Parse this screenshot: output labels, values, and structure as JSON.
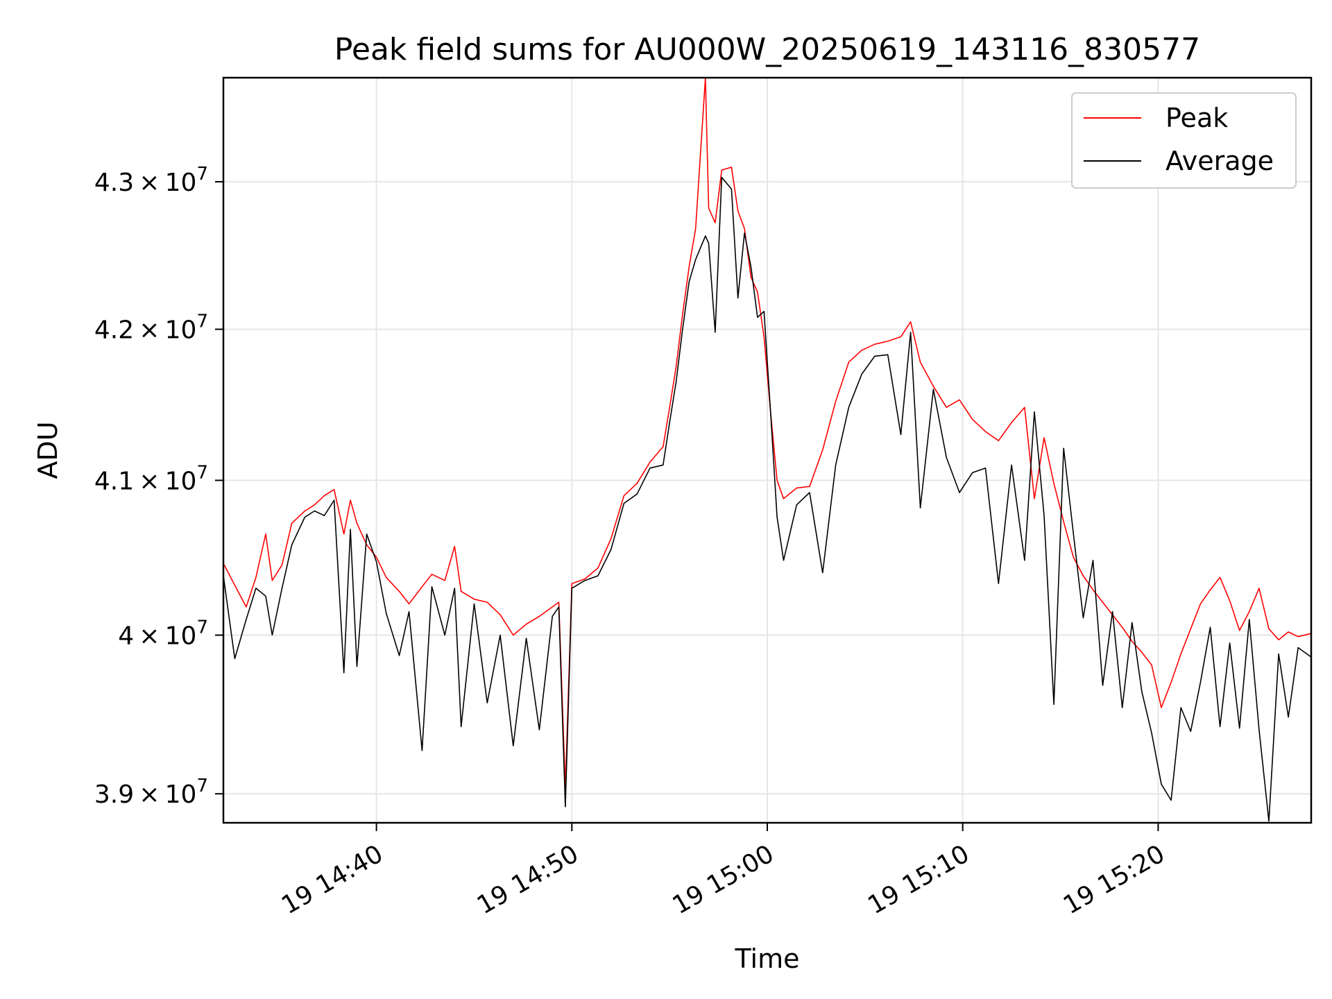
{
  "chart_data": {
    "type": "line",
    "title": "Peak field sums for AU000W_20250619_143116_830577",
    "xlabel": "Time",
    "ylabel": "ADU",
    "y_scale": "log",
    "grid": true,
    "legend_position": "upper right",
    "xlim": [
      "2025-06-19 14:32:10",
      "2025-06-19 15:27:50"
    ],
    "ylim": [
      38820000,
      43720000
    ],
    "x_ticks": [
      {
        "value": "2025-06-19 14:40",
        "label": "19 14:40"
      },
      {
        "value": "2025-06-19 14:50",
        "label": "19 14:50"
      },
      {
        "value": "2025-06-19 15:00",
        "label": "19 15:00"
      },
      {
        "value": "2025-06-19 15:10",
        "label": "19 15:10"
      },
      {
        "value": "2025-06-19 15:20",
        "label": "19 15:20"
      }
    ],
    "y_ticks": [
      {
        "value": 39000000,
        "mantissa": "3.9",
        "exponent": "7"
      },
      {
        "value": 40000000,
        "mantissa": "4",
        "exponent": "7"
      },
      {
        "value": 41000000,
        "mantissa": "4.1",
        "exponent": "7"
      },
      {
        "value": 42000000,
        "mantissa": "4.2",
        "exponent": "7"
      },
      {
        "value": 43000000,
        "mantissa": "4.3",
        "exponent": "7"
      }
    ],
    "series": [
      {
        "name": "Peak",
        "color": "#ff0000",
        "points": [
          [
            "2025-06-19 14:32:10",
            40460000
          ],
          [
            "2025-06-19 14:32:45",
            40320000
          ],
          [
            "2025-06-19 14:33:20",
            40180000
          ],
          [
            "2025-06-19 14:33:50",
            40370000
          ],
          [
            "2025-06-19 14:34:20",
            40650000
          ],
          [
            "2025-06-19 14:34:40",
            40350000
          ],
          [
            "2025-06-19 14:35:10",
            40450000
          ],
          [
            "2025-06-19 14:35:40",
            40720000
          ],
          [
            "2025-06-19 14:36:20",
            40800000
          ],
          [
            "2025-06-19 14:36:50",
            40840000
          ],
          [
            "2025-06-19 14:37:20",
            40900000
          ],
          [
            "2025-06-19 14:37:50",
            40940000
          ],
          [
            "2025-06-19 14:38:20",
            40650000
          ],
          [
            "2025-06-19 14:38:40",
            40870000
          ],
          [
            "2025-06-19 14:39:00",
            40720000
          ],
          [
            "2025-06-19 14:39:30",
            40580000
          ],
          [
            "2025-06-19 14:40:00",
            40500000
          ],
          [
            "2025-06-19 14:40:30",
            40370000
          ],
          [
            "2025-06-19 14:41:10",
            40280000
          ],
          [
            "2025-06-19 14:41:40",
            40200000
          ],
          [
            "2025-06-19 14:42:20",
            40310000
          ],
          [
            "2025-06-19 14:42:50",
            40390000
          ],
          [
            "2025-06-19 14:43:30",
            40350000
          ],
          [
            "2025-06-19 14:44:00",
            40570000
          ],
          [
            "2025-06-19 14:44:20",
            40280000
          ],
          [
            "2025-06-19 14:45:00",
            40230000
          ],
          [
            "2025-06-19 14:45:40",
            40210000
          ],
          [
            "2025-06-19 14:46:20",
            40130000
          ],
          [
            "2025-06-19 14:47:00",
            40000000
          ],
          [
            "2025-06-19 14:47:40",
            40070000
          ],
          [
            "2025-06-19 14:48:20",
            40120000
          ],
          [
            "2025-06-19 14:49:00",
            40180000
          ],
          [
            "2025-06-19 14:49:20",
            40210000
          ],
          [
            "2025-06-19 14:49:40",
            39040000
          ],
          [
            "2025-06-19 14:50:00",
            40330000
          ],
          [
            "2025-06-19 14:50:40",
            40360000
          ],
          [
            "2025-06-19 14:51:20",
            40430000
          ],
          [
            "2025-06-19 14:52:00",
            40620000
          ],
          [
            "2025-06-19 14:52:40",
            40900000
          ],
          [
            "2025-06-19 14:53:20",
            40980000
          ],
          [
            "2025-06-19 14:54:00",
            41120000
          ],
          [
            "2025-06-19 14:54:40",
            41220000
          ],
          [
            "2025-06-19 14:55:00",
            41480000
          ],
          [
            "2025-06-19 14:55:20",
            41750000
          ],
          [
            "2025-06-19 14:55:40",
            42100000
          ],
          [
            "2025-06-19 14:56:00",
            42420000
          ],
          [
            "2025-06-19 14:56:20",
            42680000
          ],
          [
            "2025-06-19 14:56:50",
            43720000
          ],
          [
            "2025-06-19 14:57:00",
            42820000
          ],
          [
            "2025-06-19 14:57:20",
            42720000
          ],
          [
            "2025-06-19 14:57:40",
            43080000
          ],
          [
            "2025-06-19 14:58:10",
            43100000
          ],
          [
            "2025-06-19 14:58:30",
            42800000
          ],
          [
            "2025-06-19 14:58:50",
            42680000
          ],
          [
            "2025-06-19 14:59:10",
            42350000
          ],
          [
            "2025-06-19 14:59:30",
            42250000
          ],
          [
            "2025-06-19 14:59:50",
            41950000
          ],
          [
            "2025-06-19 15:00:10",
            41450000
          ],
          [
            "2025-06-19 15:00:30",
            41000000
          ],
          [
            "2025-06-19 15:00:50",
            40880000
          ],
          [
            "2025-06-19 15:01:30",
            40950000
          ],
          [
            "2025-06-19 15:02:10",
            40960000
          ],
          [
            "2025-06-19 15:02:50",
            41200000
          ],
          [
            "2025-06-19 15:03:30",
            41520000
          ],
          [
            "2025-06-19 15:04:10",
            41780000
          ],
          [
            "2025-06-19 15:04:50",
            41860000
          ],
          [
            "2025-06-19 15:05:30",
            41900000
          ],
          [
            "2025-06-19 15:06:10",
            41920000
          ],
          [
            "2025-06-19 15:06:50",
            41950000
          ],
          [
            "2025-06-19 15:07:20",
            42050000
          ],
          [
            "2025-06-19 15:07:50",
            41780000
          ],
          [
            "2025-06-19 15:08:30",
            41620000
          ],
          [
            "2025-06-19 15:09:10",
            41480000
          ],
          [
            "2025-06-19 15:09:50",
            41530000
          ],
          [
            "2025-06-19 15:10:30",
            41400000
          ],
          [
            "2025-06-19 15:11:10",
            41320000
          ],
          [
            "2025-06-19 15:11:50",
            41260000
          ],
          [
            "2025-06-19 15:12:30",
            41380000
          ],
          [
            "2025-06-19 15:13:10",
            41480000
          ],
          [
            "2025-06-19 15:13:40",
            40880000
          ],
          [
            "2025-06-19 15:14:10",
            41280000
          ],
          [
            "2025-06-19 15:14:40",
            40980000
          ],
          [
            "2025-06-19 15:15:10",
            40730000
          ],
          [
            "2025-06-19 15:15:40",
            40500000
          ],
          [
            "2025-06-19 15:16:10",
            40380000
          ],
          [
            "2025-06-19 15:16:40",
            40290000
          ],
          [
            "2025-06-19 15:17:10",
            40210000
          ],
          [
            "2025-06-19 15:17:40",
            40130000
          ],
          [
            "2025-06-19 15:18:10",
            40050000
          ],
          [
            "2025-06-19 15:18:40",
            39960000
          ],
          [
            "2025-06-19 15:19:10",
            39890000
          ],
          [
            "2025-06-19 15:19:40",
            39810000
          ],
          [
            "2025-06-19 15:20:10",
            39540000
          ],
          [
            "2025-06-19 15:20:40",
            39700000
          ],
          [
            "2025-06-19 15:21:10",
            39880000
          ],
          [
            "2025-06-19 15:21:40",
            40040000
          ],
          [
            "2025-06-19 15:22:10",
            40200000
          ],
          [
            "2025-06-19 15:22:40",
            40290000
          ],
          [
            "2025-06-19 15:23:10",
            40370000
          ],
          [
            "2025-06-19 15:23:40",
            40220000
          ],
          [
            "2025-06-19 15:24:10",
            40030000
          ],
          [
            "2025-06-19 15:24:40",
            40150000
          ],
          [
            "2025-06-19 15:25:10",
            40300000
          ],
          [
            "2025-06-19 15:25:40",
            40040000
          ],
          [
            "2025-06-19 15:26:10",
            39970000
          ],
          [
            "2025-06-19 15:26:40",
            40020000
          ],
          [
            "2025-06-19 15:27:10",
            39990000
          ],
          [
            "2025-06-19 15:27:50",
            40010000
          ]
        ]
      },
      {
        "name": "Average",
        "color": "#000000",
        "points": [
          [
            "2025-06-19 14:32:10",
            40380000
          ],
          [
            "2025-06-19 14:32:45",
            39850000
          ],
          [
            "2025-06-19 14:33:20",
            40100000
          ],
          [
            "2025-06-19 14:33:50",
            40300000
          ],
          [
            "2025-06-19 14:34:20",
            40250000
          ],
          [
            "2025-06-19 14:34:40",
            40000000
          ],
          [
            "2025-06-19 14:35:10",
            40300000
          ],
          [
            "2025-06-19 14:35:40",
            40580000
          ],
          [
            "2025-06-19 14:36:20",
            40760000
          ],
          [
            "2025-06-19 14:36:50",
            40800000
          ],
          [
            "2025-06-19 14:37:20",
            40770000
          ],
          [
            "2025-06-19 14:37:50",
            40870000
          ],
          [
            "2025-06-19 14:38:20",
            39760000
          ],
          [
            "2025-06-19 14:38:40",
            40680000
          ],
          [
            "2025-06-19 14:39:00",
            39800000
          ],
          [
            "2025-06-19 14:39:30",
            40650000
          ],
          [
            "2025-06-19 14:40:00",
            40470000
          ],
          [
            "2025-06-19 14:40:30",
            40140000
          ],
          [
            "2025-06-19 14:41:10",
            39870000
          ],
          [
            "2025-06-19 14:41:40",
            40150000
          ],
          [
            "2025-06-19 14:42:20",
            39270000
          ],
          [
            "2025-06-19 14:42:50",
            40310000
          ],
          [
            "2025-06-19 14:43:30",
            40000000
          ],
          [
            "2025-06-19 14:44:00",
            40300000
          ],
          [
            "2025-06-19 14:44:20",
            39420000
          ],
          [
            "2025-06-19 14:45:00",
            40200000
          ],
          [
            "2025-06-19 14:45:40",
            39570000
          ],
          [
            "2025-06-19 14:46:20",
            40000000
          ],
          [
            "2025-06-19 14:47:00",
            39300000
          ],
          [
            "2025-06-19 14:47:40",
            39980000
          ],
          [
            "2025-06-19 14:48:20",
            39400000
          ],
          [
            "2025-06-19 14:49:00",
            40120000
          ],
          [
            "2025-06-19 14:49:20",
            40180000
          ],
          [
            "2025-06-19 14:49:40",
            38920000
          ],
          [
            "2025-06-19 14:50:00",
            40300000
          ],
          [
            "2025-06-19 14:50:40",
            40350000
          ],
          [
            "2025-06-19 14:51:20",
            40380000
          ],
          [
            "2025-06-19 14:52:00",
            40550000
          ],
          [
            "2025-06-19 14:52:40",
            40850000
          ],
          [
            "2025-06-19 14:53:20",
            40910000
          ],
          [
            "2025-06-19 14:54:00",
            41080000
          ],
          [
            "2025-06-19 14:54:40",
            41100000
          ],
          [
            "2025-06-19 14:55:00",
            41380000
          ],
          [
            "2025-06-19 14:55:20",
            41650000
          ],
          [
            "2025-06-19 14:55:40",
            42000000
          ],
          [
            "2025-06-19 14:56:00",
            42320000
          ],
          [
            "2025-06-19 14:56:20",
            42470000
          ],
          [
            "2025-06-19 14:56:50",
            42630000
          ],
          [
            "2025-06-19 14:57:00",
            42580000
          ],
          [
            "2025-06-19 14:57:20",
            41980000
          ],
          [
            "2025-06-19 14:57:40",
            43030000
          ],
          [
            "2025-06-19 14:58:10",
            42950000
          ],
          [
            "2025-06-19 14:58:30",
            42210000
          ],
          [
            "2025-06-19 14:58:50",
            42650000
          ],
          [
            "2025-06-19 14:59:10",
            42420000
          ],
          [
            "2025-06-19 14:59:30",
            42080000
          ],
          [
            "2025-06-19 14:59:50",
            42120000
          ],
          [
            "2025-06-19 15:00:10",
            41450000
          ],
          [
            "2025-06-19 15:00:30",
            40760000
          ],
          [
            "2025-06-19 15:00:50",
            40480000
          ],
          [
            "2025-06-19 15:01:30",
            40840000
          ],
          [
            "2025-06-19 15:02:10",
            40920000
          ],
          [
            "2025-06-19 15:02:50",
            40400000
          ],
          [
            "2025-06-19 15:03:30",
            41100000
          ],
          [
            "2025-06-19 15:04:10",
            41480000
          ],
          [
            "2025-06-19 15:04:50",
            41700000
          ],
          [
            "2025-06-19 15:05:30",
            41820000
          ],
          [
            "2025-06-19 15:06:10",
            41830000
          ],
          [
            "2025-06-19 15:06:50",
            41300000
          ],
          [
            "2025-06-19 15:07:20",
            41980000
          ],
          [
            "2025-06-19 15:07:50",
            40820000
          ],
          [
            "2025-06-19 15:08:30",
            41600000
          ],
          [
            "2025-06-19 15:09:10",
            41150000
          ],
          [
            "2025-06-19 15:09:50",
            40920000
          ],
          [
            "2025-06-19 15:10:30",
            41050000
          ],
          [
            "2025-06-19 15:11:10",
            41080000
          ],
          [
            "2025-06-19 15:11:50",
            40330000
          ],
          [
            "2025-06-19 15:12:30",
            41100000
          ],
          [
            "2025-06-19 15:13:10",
            40480000
          ],
          [
            "2025-06-19 15:13:40",
            41450000
          ],
          [
            "2025-06-19 15:14:10",
            40770000
          ],
          [
            "2025-06-19 15:14:40",
            39560000
          ],
          [
            "2025-06-19 15:15:10",
            41210000
          ],
          [
            "2025-06-19 15:15:40",
            40650000
          ],
          [
            "2025-06-19 15:16:10",
            40110000
          ],
          [
            "2025-06-19 15:16:40",
            40480000
          ],
          [
            "2025-06-19 15:17:10",
            39680000
          ],
          [
            "2025-06-19 15:17:40",
            40150000
          ],
          [
            "2025-06-19 15:18:10",
            39540000
          ],
          [
            "2025-06-19 15:18:40",
            40080000
          ],
          [
            "2025-06-19 15:19:10",
            39640000
          ],
          [
            "2025-06-19 15:19:40",
            39380000
          ],
          [
            "2025-06-19 15:20:10",
            39060000
          ],
          [
            "2025-06-19 15:20:40",
            38960000
          ],
          [
            "2025-06-19 15:21:10",
            39540000
          ],
          [
            "2025-06-19 15:21:40",
            39390000
          ],
          [
            "2025-06-19 15:22:10",
            39700000
          ],
          [
            "2025-06-19 15:22:40",
            40050000
          ],
          [
            "2025-06-19 15:23:10",
            39420000
          ],
          [
            "2025-06-19 15:23:40",
            39950000
          ],
          [
            "2025-06-19 15:24:10",
            39410000
          ],
          [
            "2025-06-19 15:24:40",
            40100000
          ],
          [
            "2025-06-19 15:25:10",
            39400000
          ],
          [
            "2025-06-19 15:25:40",
            38830000
          ],
          [
            "2025-06-19 15:26:10",
            39880000
          ],
          [
            "2025-06-19 15:26:40",
            39480000
          ],
          [
            "2025-06-19 15:27:10",
            39920000
          ],
          [
            "2025-06-19 15:27:50",
            39860000
          ]
        ]
      }
    ]
  }
}
